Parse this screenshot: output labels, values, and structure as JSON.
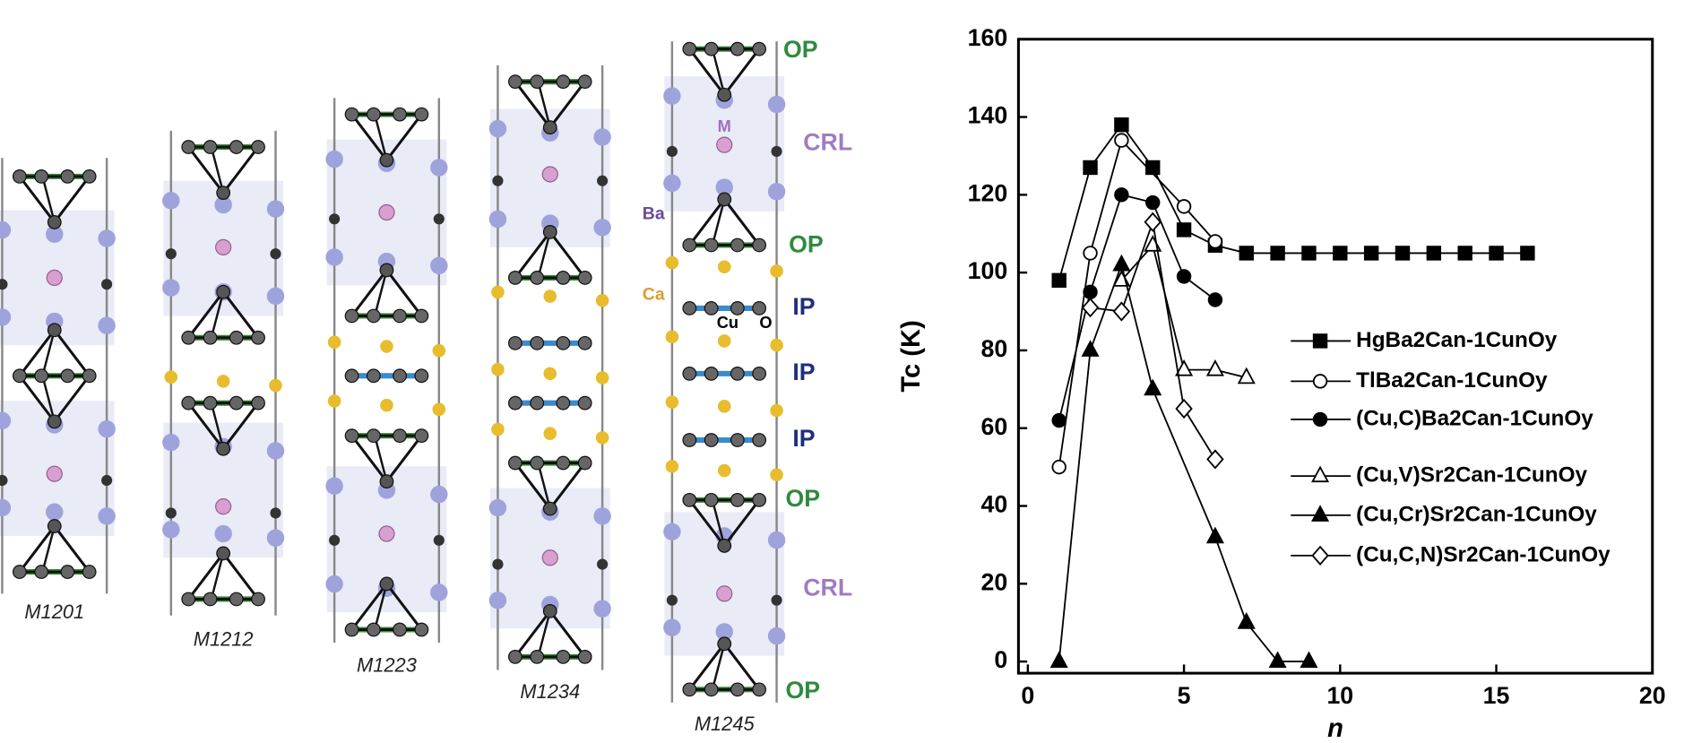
{
  "chart_data": {
    "type": "line",
    "y_label": "Tc (K)",
    "x_label": "n",
    "xlim": [
      -0.3,
      20
    ],
    "ylim": [
      -3,
      160
    ],
    "xticks": [
      0,
      5,
      10,
      15,
      20
    ],
    "yticks": [
      0,
      20,
      40,
      60,
      80,
      100,
      120,
      140,
      160
    ],
    "series": [
      {
        "name": "HgBa2Can-1CunOy",
        "color": "#000000",
        "marker": "square",
        "filled": true,
        "x": [
          1,
          2,
          3,
          4,
          5,
          6,
          7,
          8,
          9,
          10,
          11,
          12,
          13,
          14,
          15,
          16
        ],
        "values": [
          98,
          127,
          138,
          127,
          111,
          107,
          105,
          105,
          105,
          105,
          105,
          105,
          105,
          105,
          105,
          105
        ]
      },
      {
        "name": "TlBa2Can-1CunOy",
        "color": "#000000",
        "marker": "circle",
        "filled": false,
        "x": [
          1,
          2,
          3,
          5,
          6
        ],
        "values": [
          50,
          105,
          134,
          117,
          108
        ]
      },
      {
        "name": "(Cu,C)Ba2Can-1CunOy",
        "color": "#000000",
        "marker": "circle",
        "filled": true,
        "x": [
          1,
          2,
          3,
          4,
          5,
          6
        ],
        "values": [
          62,
          95,
          120,
          118,
          99,
          93
        ]
      },
      {
        "name": "(Cu,V)Sr2Can-1CunOy",
        "color": "#000000",
        "marker": "triangle",
        "filled": false,
        "x": [
          3,
          4,
          5,
          6,
          7
        ],
        "values": [
          98,
          107,
          75,
          75,
          73
        ]
      },
      {
        "name": "(Cu,Cr)Sr2Can-1CunOy",
        "color": "#000000",
        "marker": "triangle",
        "filled": true,
        "x": [
          1,
          2,
          3,
          4,
          6,
          7,
          8,
          9
        ],
        "values": [
          0,
          80,
          102,
          70,
          32,
          10,
          0,
          0
        ]
      },
      {
        "name": "(Cu,C,N)Sr2Can-1CunOy",
        "color": "#000000",
        "marker": "diamond",
        "filled": false,
        "x": [
          2,
          3,
          4,
          5,
          6
        ],
        "values": [
          91,
          90,
          113,
          65,
          52
        ]
      }
    ]
  },
  "diagram": {
    "structures": [
      "M1201",
      "M1212",
      "M1223",
      "M1234",
      "M1245"
    ],
    "layer_labels": [
      "OP",
      "CRL",
      "OP",
      "IP",
      "IP",
      "IP",
      "OP",
      "CRL",
      "OP"
    ],
    "atom_labels": [
      "Ba",
      "Ca",
      "Cu",
      "O",
      "M"
    ]
  }
}
